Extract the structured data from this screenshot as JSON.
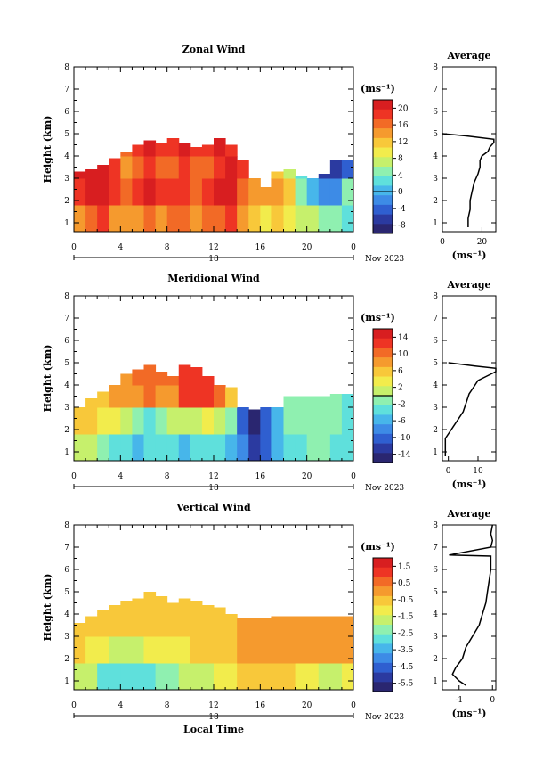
{
  "chart_data": [
    {
      "type": "heatmap",
      "title": "Zonal Wind",
      "ylabel": "Height (km)",
      "unit": "(ms⁻¹)",
      "ylim": [
        0.6,
        8
      ],
      "xlim": [
        0,
        24
      ],
      "yticks": [
        "1",
        "2",
        "3",
        "4",
        "5",
        "6",
        "7",
        "8"
      ],
      "xticks": [
        "0",
        "4",
        "8",
        "12",
        "16",
        "20",
        "0"
      ],
      "date_day": "18",
      "date_month": "Nov 2023",
      "colorbar_ticks": [
        "20",
        "16",
        "12",
        "8",
        "4",
        "0",
        "-4",
        "-8"
      ],
      "colorbar_range": [
        -10,
        22
      ],
      "cloud_top_km": [
        3.3,
        3.4,
        3.6,
        3.9,
        4.2,
        4.5,
        4.7,
        4.6,
        4.8,
        4.6,
        4.4,
        4.5,
        4.8,
        4.5,
        3.8,
        3.0,
        2.6,
        3.3,
        3.4,
        3.1,
        3.0,
        3.2,
        3.8,
        3.8
      ],
      "layers": [
        {
          "h0": 0.6,
          "h1": 1.8,
          "values": [
            14,
            16,
            18,
            15,
            13,
            15,
            16,
            15,
            17,
            16,
            14,
            16,
            17,
            18,
            15,
            12,
            10,
            12,
            10,
            8,
            6,
            5,
            4,
            3
          ]
        },
        {
          "h0": 1.8,
          "h1": 3.0,
          "values": [
            19,
            20,
            21,
            18,
            16,
            19,
            20,
            18,
            19,
            18,
            17,
            19,
            20,
            21,
            17,
            14,
            15,
            14,
            12,
            5,
            1,
            -3,
            -2,
            4
          ]
        },
        {
          "h0": 3.0,
          "h1": 4.0,
          "values": [
            21,
            21,
            21,
            18,
            15,
            17,
            19,
            16,
            17,
            18,
            16,
            17,
            19,
            20,
            18,
            null,
            null,
            12,
            8,
            3,
            -2,
            -6,
            -7,
            -5
          ]
        },
        {
          "h0": 4.0,
          "h1": 5.0,
          "values": [
            null,
            null,
            null,
            19,
            17,
            18,
            20,
            18,
            19,
            20,
            18,
            19,
            20,
            19,
            null,
            null,
            null,
            null,
            null,
            null,
            null,
            null,
            null,
            null
          ]
        }
      ],
      "profile": {
        "title": "Average",
        "xlabel": "(ms⁻¹)",
        "xticks": [
          "0",
          "20"
        ],
        "xlim": [
          0,
          27
        ],
        "heights": [
          0.8,
          1.2,
          1.6,
          2.0,
          2.4,
          2.8,
          3.2,
          3.5,
          3.8,
          4.0,
          4.2,
          4.4,
          4.6,
          4.75,
          4.9,
          5.0
        ],
        "values": [
          13,
          13,
          14,
          14,
          15,
          16,
          18,
          19,
          19,
          20,
          23,
          24,
          26,
          26,
          12,
          0
        ]
      }
    },
    {
      "type": "heatmap",
      "title": "Meridional Wind",
      "ylabel": "Height (km)",
      "unit": "(ms⁻¹)",
      "ylim": [
        0.6,
        8
      ],
      "xlim": [
        0,
        24
      ],
      "yticks": [
        "1",
        "2",
        "3",
        "4",
        "5",
        "6",
        "7",
        "8"
      ],
      "xticks": [
        "0",
        "4",
        "8",
        "12",
        "16",
        "20",
        "0"
      ],
      "date_day": "18",
      "date_month": "Nov 2023",
      "colorbar_ticks": [
        "14",
        "10",
        "6",
        "2",
        "-2",
        "-6",
        "-10",
        "-14"
      ],
      "colorbar_range": [
        -16,
        16
      ],
      "cloud_top_km": [
        3.2,
        3.4,
        3.7,
        4.1,
        4.5,
        4.7,
        4.9,
        4.6,
        4.4,
        4.9,
        4.8,
        4.4,
        4.3,
        3.9,
        3.2,
        2.9,
        3.1,
        3.4,
        3.5,
        3.5,
        3.5,
        3.5,
        3.6,
        3.6
      ],
      "layers": [
        {
          "h0": 0.6,
          "h1": 1.8,
          "values": [
            2,
            1,
            -1,
            -3,
            -4,
            -5,
            -4,
            -3,
            -4,
            -5,
            -4,
            -3,
            -4,
            -6,
            -8,
            -12,
            -10,
            -6,
            -4,
            -3,
            -2,
            -2,
            -3,
            -3
          ]
        },
        {
          "h0": 1.8,
          "h1": 3.0,
          "values": [
            5,
            5,
            4,
            3,
            1,
            -2,
            -3,
            -1,
            0,
            1,
            2,
            3,
            1,
            -2,
            -10,
            -15,
            -11,
            -6,
            -2,
            -1,
            -1,
            -2,
            -2,
            -3
          ]
        },
        {
          "h0": 3.0,
          "h1": 4.0,
          "values": [
            null,
            6,
            6,
            7,
            8,
            8,
            10,
            9,
            9,
            12,
            13,
            12,
            10,
            6,
            null,
            null,
            null,
            null,
            -1,
            -2,
            -1,
            -2,
            -2,
            -3
          ]
        },
        {
          "h0": 4.0,
          "h1": 5.0,
          "values": [
            null,
            null,
            null,
            null,
            9,
            10,
            11,
            10,
            10,
            13,
            13,
            12,
            null,
            null,
            null,
            null,
            null,
            null,
            null,
            null,
            null,
            null,
            null,
            null
          ]
        }
      ],
      "profile": {
        "title": "Average",
        "xlabel": "(ms⁻¹)",
        "xticks": [
          "0",
          "10"
        ],
        "xlim": [
          -2,
          16
        ],
        "heights": [
          0.8,
          1.2,
          1.6,
          2.0,
          2.4,
          2.8,
          3.2,
          3.6,
          4.0,
          4.2,
          4.4,
          4.6,
          4.75,
          4.85,
          5.0
        ],
        "values": [
          -1,
          -1,
          -1,
          1,
          3,
          5,
          6,
          7,
          9,
          10,
          13,
          16,
          16,
          9,
          0
        ]
      }
    },
    {
      "type": "heatmap",
      "title": "Vertical Wind",
      "ylabel": "Height (km)",
      "xlabel": "Local Time",
      "unit": "(ms⁻¹)",
      "ylim": [
        0.6,
        8
      ],
      "xlim": [
        0,
        24
      ],
      "yticks": [
        "1",
        "2",
        "3",
        "4",
        "5",
        "6",
        "7",
        "8"
      ],
      "xticks": [
        "0",
        "4",
        "8",
        "12",
        "16",
        "20",
        "0"
      ],
      "date_day": "18",
      "date_month": "Nov 2023",
      "colorbar_ticks": [
        "1.5",
        "0.5",
        "-0.5",
        "-1.5",
        "-2.5",
        "-3.5",
        "-4.5",
        "-5.5"
      ],
      "colorbar_range": [
        -6,
        2
      ],
      "cloud_top_km": [
        3.6,
        3.9,
        4.2,
        4.4,
        4.6,
        4.7,
        5.0,
        4.8,
        4.5,
        4.7,
        4.6,
        4.4,
        4.3,
        4.0,
        3.8,
        3.8,
        3.8,
        3.9,
        3.9,
        3.9,
        3.9,
        3.9,
        3.9,
        3.9
      ],
      "layers": [
        {
          "h0": 0.6,
          "h1": 1.8,
          "values": [
            -1.5,
            -2.0,
            -2.6,
            -2.8,
            -3.0,
            -2.8,
            -2.6,
            -2.4,
            -2.2,
            -2.0,
            -1.8,
            -1.5,
            -1.2,
            -1.0,
            -0.8,
            -0.6,
            -0.6,
            -0.7,
            -0.8,
            -1.2,
            -1.3,
            -1.5,
            -1.6,
            -1.4
          ]
        },
        {
          "h0": 1.8,
          "h1": 3.0,
          "values": [
            -0.8,
            -1.0,
            -1.4,
            -1.6,
            -1.8,
            -1.6,
            -1.4,
            -1.2,
            -1.0,
            -0.9,
            -0.8,
            -0.7,
            -0.6,
            -0.4,
            -0.2,
            -0.1,
            0.0,
            0.0,
            0.0,
            -0.1,
            0.0,
            0.0,
            0.0,
            0.0
          ]
        },
        {
          "h0": 3.0,
          "h1": 4.0,
          "values": [
            -0.4,
            -0.5,
            -0.6,
            -0.7,
            -0.8,
            -0.7,
            -0.6,
            -0.6,
            -0.5,
            -0.5,
            -0.5,
            -0.4,
            -0.4,
            -0.3,
            0.0,
            0.1,
            0.2,
            0.2,
            0.2,
            0.2,
            0.2,
            0.2,
            0.2,
            0.2
          ]
        },
        {
          "h0": 4.0,
          "h1": 5.0,
          "values": [
            null,
            null,
            -0.3,
            -0.4,
            -0.5,
            -0.4,
            -0.3,
            -0.4,
            -0.4,
            -0.5,
            -0.4,
            -0.4,
            -0.3,
            null,
            null,
            null,
            null,
            null,
            null,
            null,
            null,
            null,
            null,
            null
          ]
        }
      ],
      "profile": {
        "title": "Average",
        "xlabel": "(ms⁻¹)",
        "xticks": [
          "-1",
          "0"
        ],
        "xlim": [
          -1.5,
          0.1
        ],
        "heights": [
          0.8,
          1.0,
          1.3,
          1.6,
          2.0,
          2.5,
          3.0,
          3.5,
          4.0,
          4.5,
          5.0,
          5.5,
          6.0,
          6.3,
          6.6,
          6.65,
          7.0,
          7.3,
          7.6,
          8.0
        ],
        "values": [
          -0.8,
          -1.0,
          -1.2,
          -1.1,
          -0.9,
          -0.8,
          -0.6,
          -0.4,
          -0.3,
          -0.2,
          -0.15,
          -0.1,
          -0.05,
          -0.05,
          -0.05,
          -1.3,
          -0.05,
          0.0,
          -0.05,
          0.0
        ]
      }
    }
  ]
}
